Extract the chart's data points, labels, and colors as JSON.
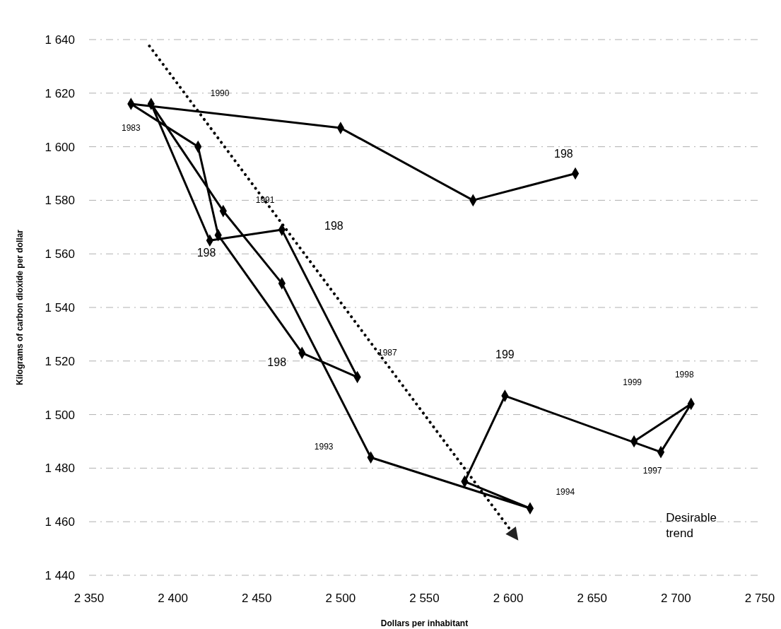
{
  "chart_data": {
    "type": "line",
    "xlabel": "Dollars per inhabitant",
    "ylabel": "Kilograms of carbon dioxide per dollar",
    "series": [
      {
        "color": "#000000",
        "x": [
          2640,
          2579,
          2500,
          2375,
          2415,
          2427,
          2477,
          2510,
          2465,
          2422,
          2387,
          2430,
          2465,
          2518,
          2613,
          2574,
          2598,
          2691,
          2709,
          2675
        ],
        "values": [
          1590,
          1580,
          1607,
          1616,
          1600,
          1567,
          1523,
          1514,
          1569,
          1565,
          1616,
          1576,
          1549,
          1484,
          1465,
          1475,
          1507,
          1486,
          1504,
          1490
        ]
      }
    ],
    "marker": "diamond",
    "line_style": "solid",
    "xlim": [
      2350,
      2750
    ],
    "ylim": [
      1440,
      1640
    ],
    "xticks": [
      {
        "value": 2350,
        "label": "2 350"
      },
      {
        "value": 2400,
        "label": "2 400"
      },
      {
        "value": 2450,
        "label": "2 450"
      },
      {
        "value": 2500,
        "label": "2 500"
      },
      {
        "value": 2550,
        "label": "2 550"
      },
      {
        "value": 2600,
        "label": "2 600"
      },
      {
        "value": 2650,
        "label": "2 650"
      },
      {
        "value": 2700,
        "label": "2 700"
      },
      {
        "value": 2750,
        "label": "2 750"
      }
    ],
    "yticks": [
      {
        "value": 1440,
        "label": "1 440"
      },
      {
        "value": 1460,
        "label": "1 460"
      },
      {
        "value": 1480,
        "label": "1 480"
      },
      {
        "value": 1500,
        "label": "1 500"
      },
      {
        "value": 1520,
        "label": "1 520"
      },
      {
        "value": 1540,
        "label": "1 540"
      },
      {
        "value": 1560,
        "label": "1 560"
      },
      {
        "value": 1580,
        "label": "1 580"
      },
      {
        "value": 1600,
        "label": "1 600"
      },
      {
        "value": 1620,
        "label": "1 620"
      },
      {
        "value": 1640,
        "label": "1 640"
      }
    ],
    "grid": "y",
    "annotations": [
      "1983",
      "1990",
      "1991",
      "198",
      "198",
      "198",
      "1987",
      "198",
      "199",
      "1999",
      "1998",
      "1997",
      "1994",
      "1993",
      "Desirable trend"
    ]
  }
}
